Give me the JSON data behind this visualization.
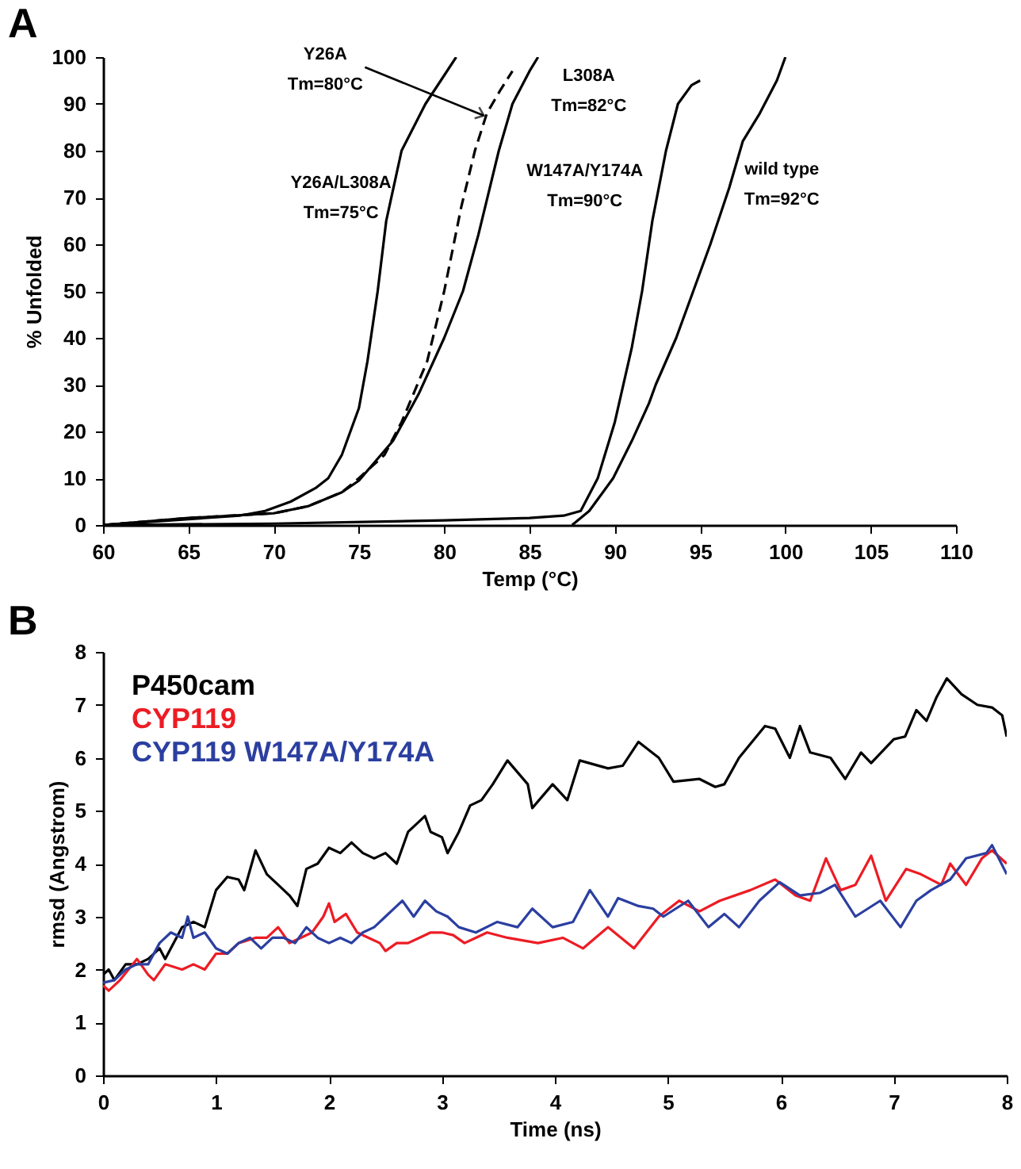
{
  "chart_data": [
    {
      "type": "line",
      "title": "A",
      "xlabel": "Temp (°C)",
      "ylabel": "% Unfolded",
      "xlim": [
        60,
        110
      ],
      "xticks": [
        60,
        65,
        70,
        75,
        80,
        85,
        90,
        95,
        100,
        105,
        110
      ],
      "ylim": [
        0,
        100
      ],
      "yticks": [
        0,
        10,
        20,
        30,
        40,
        50,
        60,
        70,
        80,
        90,
        100
      ],
      "series": [
        {
          "color": "#000000",
          "x": [
            60,
            64,
            68,
            69.5,
            71,
            72.5,
            73.2,
            74,
            75,
            75.5,
            76.1,
            76.6,
            77.5,
            78.9,
            80.7
          ],
          "values": [
            0,
            1,
            2,
            3,
            5,
            8,
            10,
            15,
            25,
            35,
            50,
            65,
            80,
            90,
            100
          ]
        },
        {
          "color": "#000000",
          "line_style": "dashed",
          "x": [
            60,
            65,
            70,
            72,
            74,
            75,
            76.5,
            77.5,
            79,
            80,
            81,
            81.8,
            82.5,
            83.3,
            84
          ],
          "values": [
            0,
            1.5,
            2.5,
            4,
            7,
            10,
            15,
            22,
            35,
            50,
            68,
            80,
            88,
            93,
            97
          ]
        },
        {
          "color": "#000000",
          "x": [
            60,
            65,
            70,
            72,
            74,
            75,
            77,
            78.5,
            80,
            81.1,
            82,
            83.2,
            84,
            85,
            85.5
          ],
          "values": [
            0,
            1.5,
            2.5,
            4,
            7,
            9.5,
            18,
            28,
            40,
            50,
            62,
            80,
            90,
            97,
            100
          ]
        },
        {
          "color": "#000000",
          "x": [
            60,
            70,
            80,
            85,
            87,
            88,
            89,
            90,
            91,
            91.6,
            92.2,
            93,
            93.7,
            94.5,
            95
          ],
          "values": [
            0,
            0.3,
            1,
            1.5,
            2,
            3,
            10,
            22,
            38,
            50,
            65,
            80,
            90,
            94,
            95
          ]
        },
        {
          "color": "#000000",
          "x": [
            87.5,
            88.5,
            89.9,
            91,
            92,
            92.4,
            93.6,
            94.6,
            95.6,
            96.7,
            97.5,
            98.5,
            99.5,
            100
          ],
          "values": [
            0,
            3,
            10,
            18,
            26,
            30,
            40,
            50,
            60,
            72,
            82,
            88,
            95,
            100
          ]
        }
      ],
      "annotations": [
        {
          "text": "Y26A\nTm=80°C",
          "x": 82.6,
          "y": 88
        },
        {
          "text": "Y26A/L308A\nTm=75°C",
          "x": 77.2,
          "y": 73
        },
        {
          "text": "L308A\nTm=82°C",
          "x": 85.5,
          "y": 100
        },
        {
          "text": "W147A/Y174A\nTm=90°C",
          "x": 92.7,
          "y": 75.6
        },
        {
          "text": "wild type\nTm=92°C",
          "x": 97,
          "y": 76
        }
      ]
    },
    {
      "type": "line",
      "title": "B",
      "xlabel": "Time (ns)",
      "ylabel": "rmsd (Angstrom)",
      "xlim": [
        0,
        8
      ],
      "xticks": [
        0,
        1,
        2,
        3,
        4,
        5,
        6,
        7,
        8
      ],
      "ylim": [
        0,
        8
      ],
      "yticks": [
        0,
        1,
        2,
        3,
        4,
        5,
        6,
        7,
        8
      ],
      "legend": "top left",
      "series": [
        {
          "name": "P450cam",
          "color": "#000000",
          "x": [
            0,
            0.05,
            0.1,
            0.2,
            0.3,
            0.4,
            0.5,
            0.55,
            0.6,
            0.7,
            0.8,
            0.9,
            1.0,
            1.1,
            1.2,
            1.25,
            1.35,
            1.45,
            1.55,
            1.65,
            1.72,
            1.8,
            1.9,
            2.0,
            2.1,
            2.2,
            2.3,
            2.4,
            2.5,
            2.6,
            2.7,
            2.8,
            2.85,
            2.9,
            3.0,
            3.05,
            3.15,
            3.25,
            3.35,
            3.45,
            3.58,
            3.76,
            3.8,
            3.98,
            4.11,
            4.22,
            4.47,
            4.6,
            4.74,
            4.92,
            5.05,
            5.28,
            5.42,
            5.5,
            5.63,
            5.86,
            5.95,
            6.08,
            6.17,
            6.26,
            6.44,
            6.57,
            6.71,
            6.8,
            7.0,
            7.1,
            7.2,
            7.29,
            7.38,
            7.47,
            7.6,
            7.74,
            7.87,
            7.96,
            8.0
          ],
          "values": [
            1.9,
            2.0,
            1.8,
            2.1,
            2.1,
            2.2,
            2.4,
            2.2,
            2.4,
            2.8,
            2.9,
            2.8,
            3.5,
            3.75,
            3.7,
            3.5,
            4.25,
            3.8,
            3.6,
            3.4,
            3.2,
            3.9,
            4.0,
            4.3,
            4.2,
            4.4,
            4.2,
            4.1,
            4.2,
            4.0,
            4.6,
            4.8,
            4.9,
            4.6,
            4.5,
            4.2,
            4.6,
            5.1,
            5.2,
            5.5,
            5.95,
            5.5,
            5.05,
            5.5,
            5.2,
            5.95,
            5.8,
            5.85,
            6.3,
            6.0,
            5.55,
            5.6,
            5.45,
            5.5,
            6.0,
            6.6,
            6.55,
            6.0,
            6.6,
            6.1,
            6.0,
            5.6,
            6.1,
            5.9,
            6.35,
            6.4,
            6.9,
            6.7,
            7.15,
            7.5,
            7.2,
            7.0,
            6.95,
            6.8,
            6.4
          ]
        },
        {
          "name": "CYP119",
          "color": "#ed1c24",
          "x": [
            0,
            0.05,
            0.15,
            0.3,
            0.4,
            0.45,
            0.55,
            0.7,
            0.8,
            0.9,
            1.0,
            1.1,
            1.2,
            1.35,
            1.45,
            1.55,
            1.65,
            1.75,
            1.85,
            1.95,
            2.0,
            2.05,
            2.15,
            2.25,
            2.35,
            2.45,
            2.5,
            2.6,
            2.7,
            2.8,
            2.9,
            3.0,
            3.1,
            3.2,
            3.3,
            3.4,
            3.58,
            3.85,
            4.07,
            4.25,
            4.47,
            4.7,
            4.92,
            5.1,
            5.28,
            5.46,
            5.73,
            5.95,
            6.13,
            6.26,
            6.4,
            6.53,
            6.66,
            6.8,
            6.93,
            7.11,
            7.24,
            7.42,
            7.5,
            7.64,
            7.78,
            7.87,
            8.0
          ],
          "values": [
            1.7,
            1.6,
            1.8,
            2.2,
            1.9,
            1.8,
            2.1,
            2.0,
            2.1,
            2.0,
            2.3,
            2.3,
            2.5,
            2.6,
            2.6,
            2.8,
            2.5,
            2.6,
            2.7,
            3.0,
            3.25,
            2.9,
            3.05,
            2.7,
            2.6,
            2.5,
            2.35,
            2.5,
            2.5,
            2.6,
            2.7,
            2.7,
            2.65,
            2.5,
            2.6,
            2.7,
            2.6,
            2.5,
            2.6,
            2.4,
            2.8,
            2.4,
            3.0,
            3.3,
            3.1,
            3.3,
            3.5,
            3.7,
            3.4,
            3.3,
            4.1,
            3.5,
            3.6,
            4.15,
            3.3,
            3.9,
            3.8,
            3.6,
            4.0,
            3.6,
            4.1,
            4.25,
            4.0
          ]
        },
        {
          "name": "CYP119 W147A/Y174A",
          "color": "#2b3fa0",
          "x": [
            0,
            0.1,
            0.2,
            0.3,
            0.4,
            0.5,
            0.6,
            0.7,
            0.75,
            0.8,
            0.9,
            1.0,
            1.1,
            1.2,
            1.3,
            1.4,
            1.5,
            1.6,
            1.7,
            1.8,
            1.9,
            2.0,
            2.1,
            2.2,
            2.3,
            2.4,
            2.5,
            2.6,
            2.65,
            2.75,
            2.85,
            2.95,
            3.05,
            3.15,
            3.3,
            3.49,
            3.67,
            3.8,
            3.98,
            4.16,
            4.31,
            4.47,
            4.56,
            4.74,
            4.87,
            4.96,
            5.18,
            5.36,
            5.5,
            5.63,
            5.81,
            5.99,
            6.17,
            6.35,
            6.48,
            6.66,
            6.88,
            7.06,
            7.2,
            7.33,
            7.5,
            7.64,
            7.82,
            7.87,
            8.0
          ],
          "values": [
            1.75,
            1.8,
            2.0,
            2.1,
            2.1,
            2.5,
            2.7,
            2.6,
            3.0,
            2.6,
            2.7,
            2.4,
            2.3,
            2.5,
            2.6,
            2.4,
            2.6,
            2.6,
            2.5,
            2.8,
            2.6,
            2.5,
            2.6,
            2.5,
            2.7,
            2.8,
            3.0,
            3.2,
            3.3,
            3.0,
            3.3,
            3.1,
            3.0,
            2.8,
            2.7,
            2.9,
            2.8,
            3.15,
            2.8,
            2.9,
            3.5,
            3.0,
            3.35,
            3.2,
            3.15,
            3.0,
            3.3,
            2.8,
            3.05,
            2.8,
            3.3,
            3.65,
            3.4,
            3.45,
            3.6,
            3.0,
            3.3,
            2.8,
            3.3,
            3.5,
            3.7,
            4.1,
            4.2,
            4.35,
            3.8
          ]
        }
      ]
    }
  ]
}
